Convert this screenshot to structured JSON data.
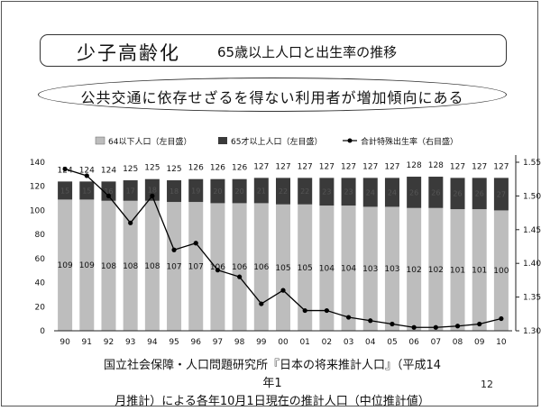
{
  "title": {
    "main": "少子高齢化",
    "sub": "65歳以上人口と出生率の推移"
  },
  "banner": "公共交通に依存せざるを得ない利用者が増加傾向にある",
  "chart_data": {
    "type": "bar",
    "stacked": true,
    "categories": [
      "90",
      "91",
      "92",
      "93",
      "94",
      "95",
      "96",
      "97",
      "98",
      "99",
      "00",
      "01",
      "02",
      "03",
      "04",
      "05",
      "06",
      "07",
      "08",
      "09",
      "10"
    ],
    "series": [
      {
        "name": "64以下人口（左目盛）",
        "axis": "left",
        "color": "#bdbdbd",
        "values": [
          109,
          109,
          108,
          108,
          108,
          107,
          107,
          106,
          106,
          106,
          105,
          105,
          104,
          104,
          103,
          103,
          102,
          102,
          101,
          101,
          100
        ]
      },
      {
        "name": "65才以上人口（左目盛）",
        "axis": "left",
        "color": "#3a3a3a",
        "values": [
          15,
          15,
          16,
          17,
          18,
          18,
          19,
          20,
          20,
          21,
          22,
          22,
          23,
          23,
          24,
          24,
          26,
          26,
          26,
          26,
          27
        ]
      },
      {
        "name": "合計特殊出生率（右目盛）",
        "axis": "right",
        "type": "line",
        "color": "#000000",
        "values": [
          1.54,
          1.53,
          1.5,
          1.46,
          1.5,
          1.42,
          1.43,
          1.39,
          1.38,
          1.34,
          1.36,
          1.33,
          1.33,
          1.32,
          1.315,
          1.31,
          1.305,
          1.305,
          1.307,
          1.31,
          1.318
        ]
      }
    ],
    "totals": [
      124,
      124,
      124,
      125,
      125,
      125,
      126,
      126,
      126,
      127,
      127,
      127,
      127,
      127,
      127,
      127,
      128,
      128,
      127,
      127,
      127
    ],
    "left_axis": {
      "ylim": [
        0,
        140
      ],
      "ticks": [
        0,
        20,
        40,
        60,
        80,
        100,
        120,
        140
      ]
    },
    "right_axis": {
      "ylim": [
        1.3,
        1.55
      ],
      "ticks": [
        1.3,
        1.35,
        1.4,
        1.45,
        1.5,
        1.55
      ],
      "tick_labels": [
        "1.30",
        "1.35",
        "1.40",
        "1.45",
        "1.50",
        "1.55"
      ]
    },
    "grid": false,
    "legend_position": "top"
  },
  "footnote": {
    "line1": "国立社会保障・人口問題研究所『日本の将来推計人口』（平成14年1",
    "line2": "月推計）による各年10月1日現在の推計人口（中位推計値）"
  },
  "page_number": "12"
}
